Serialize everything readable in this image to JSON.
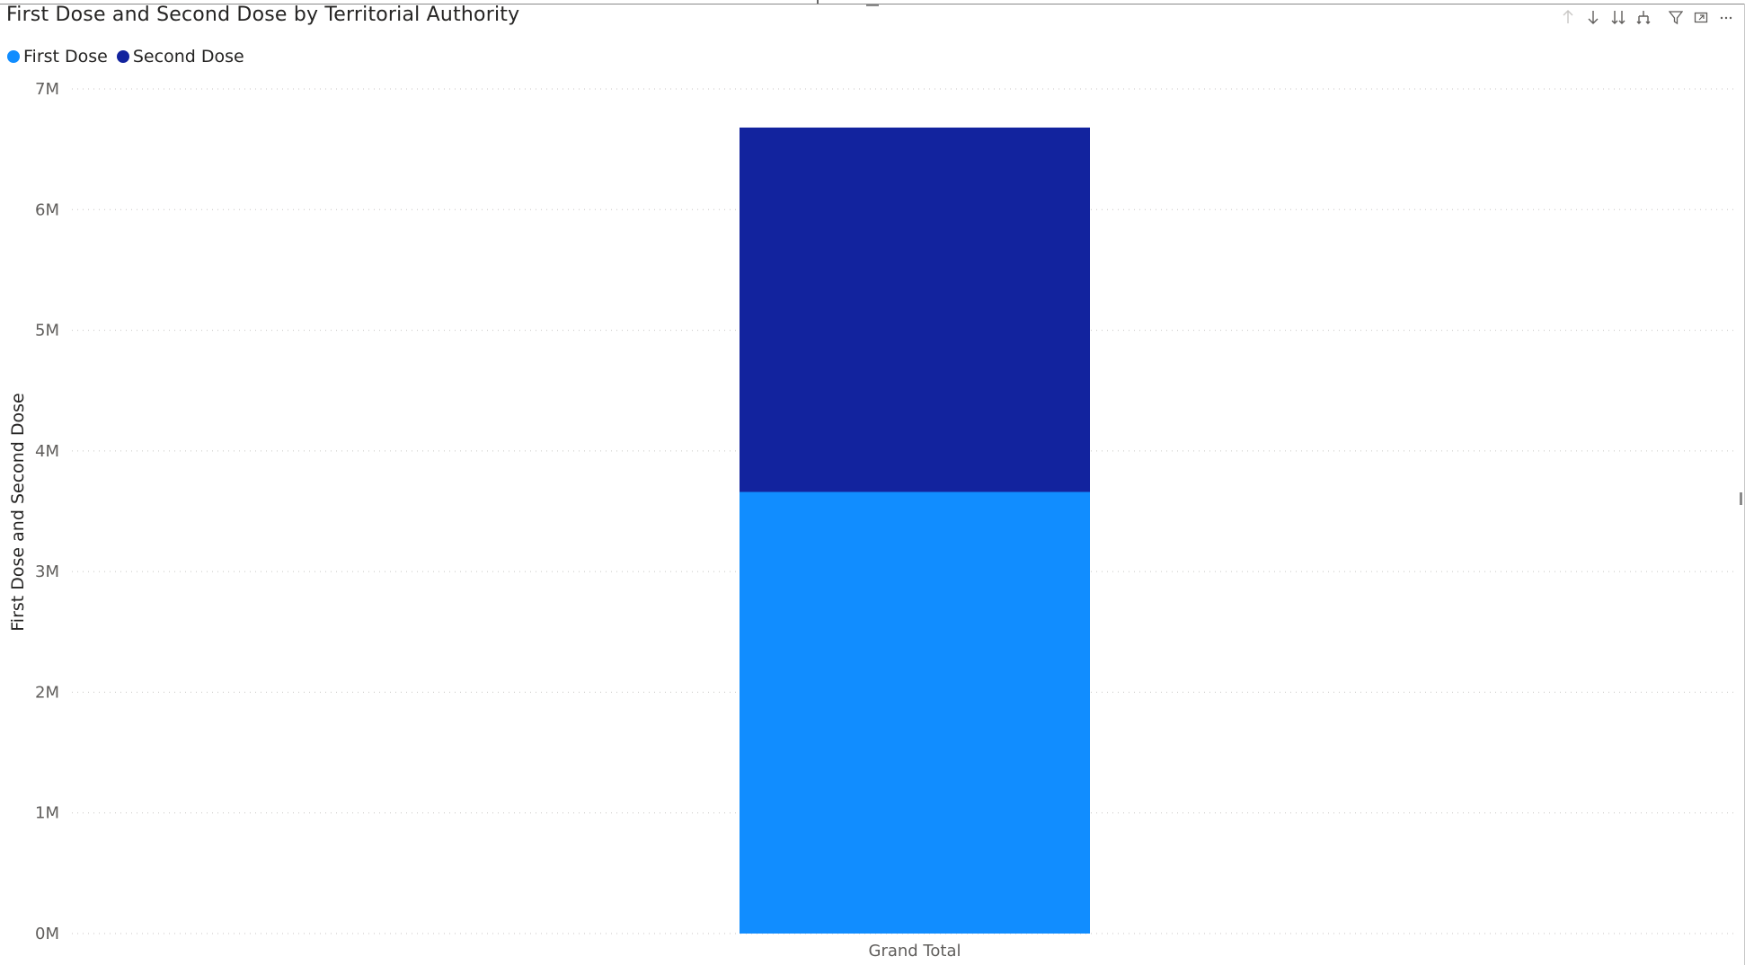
{
  "visual": {
    "title": "First Dose and Second Dose by Territorial Authority"
  },
  "legend": {
    "items": [
      {
        "label": "First Dose",
        "color": "#118dff"
      },
      {
        "label": "Second Dose",
        "color": "#12239e"
      }
    ]
  },
  "toolbar": {
    "icons": [
      "arrow-up-icon",
      "arrow-down-icon",
      "double-arrow-down-icon",
      "expand-hierarchy-icon",
      "filter-icon",
      "focus-mode-icon",
      "more-options-icon"
    ]
  },
  "chart_data": {
    "type": "bar",
    "stacked": true,
    "title": "First Dose and Second Dose by Territorial Authority",
    "categories": [
      "Grand Total"
    ],
    "series": [
      {
        "name": "First Dose",
        "values": [
          3.66
        ],
        "color": "#118dff"
      },
      {
        "name": "Second Dose",
        "values": [
          3.02
        ],
        "color": "#12239e"
      }
    ],
    "value_unit": "M",
    "xlabel": "",
    "ylabel": "First Dose and Second Dose",
    "ylim": [
      0,
      7
    ],
    "yticks": [
      "0M",
      "1M",
      "2M",
      "3M",
      "4M",
      "5M",
      "6M",
      "7M"
    ],
    "grid": true,
    "legend_position": "top-left"
  }
}
